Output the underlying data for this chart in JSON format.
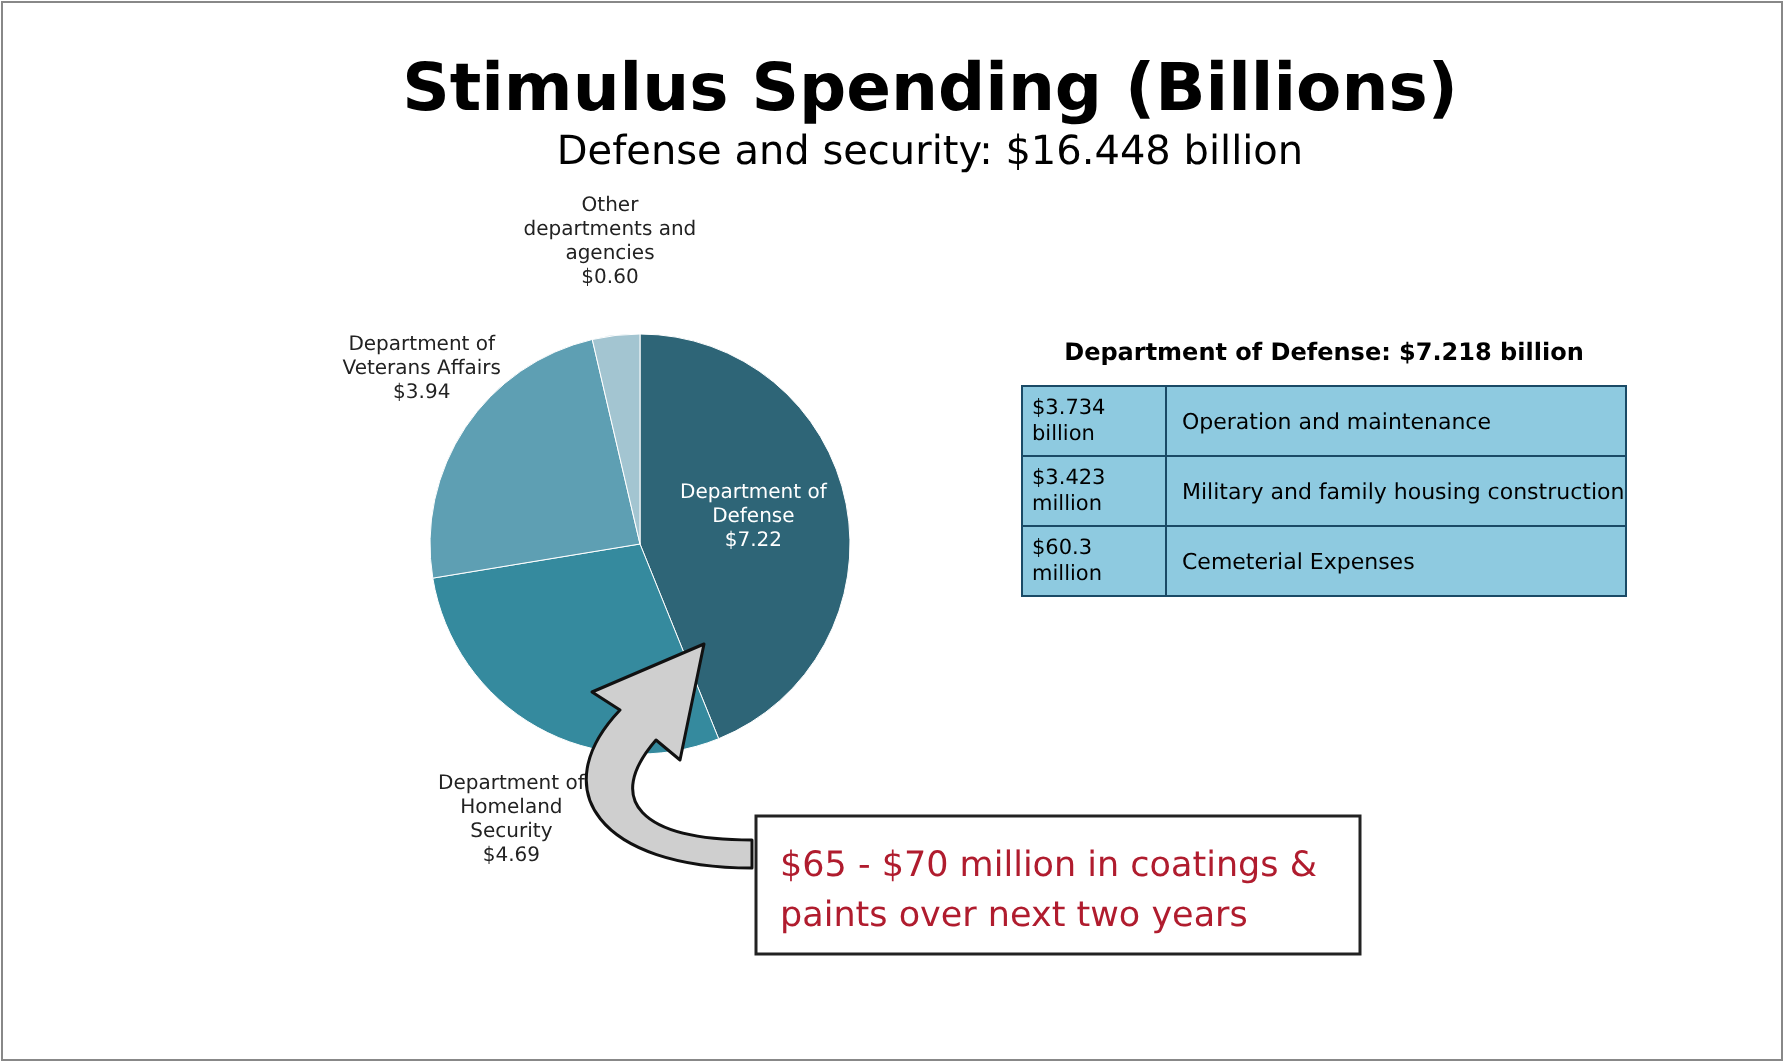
{
  "chart_data": [
    {
      "type": "pie",
      "title": "Stimulus Spending (Billions)",
      "subtitle": "Defense and security: $16.448 billion",
      "categories": [
        "Department of Defense",
        "Department of Homeland Security",
        "Department of Veterans Affairs",
        "Other departments and agencies"
      ],
      "values": [
        7.22,
        4.69,
        3.94,
        0.6
      ],
      "value_labels": [
        "$7.22",
        "$4.69",
        "$3.94",
        "$0.60"
      ],
      "colors": [
        "#2e6577",
        "#358a9e",
        "#5e9fb3",
        "#a3c5d1"
      ],
      "annotations": [
        "$65 - $70 million in coatings & paints over next two years"
      ]
    },
    {
      "type": "other",
      "title": "Department of Defense: $7.218 billion",
      "annotations": [
        "$3.734 billion",
        "Operation and maintenance",
        "$3.423 million",
        "Military and family housing construction",
        "$60.3 million",
        "Cemeterial Expenses"
      ]
    }
  ]
}
